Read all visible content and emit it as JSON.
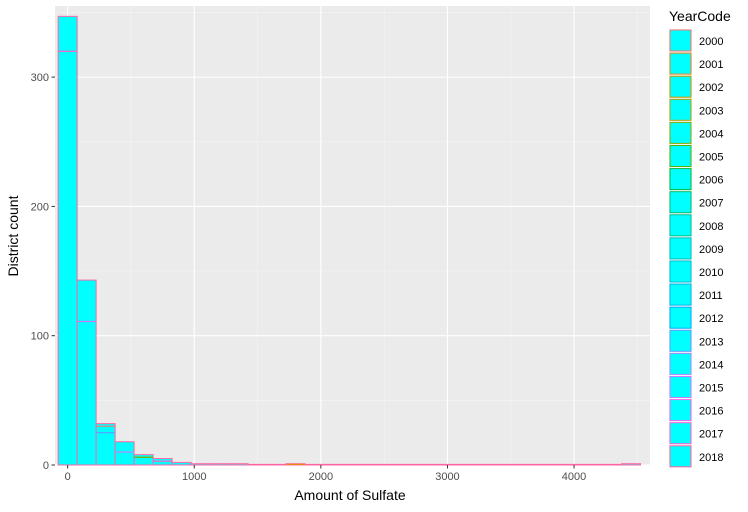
{
  "chart_data": {
    "type": "bar",
    "subtype": "stacked-histogram",
    "title": "",
    "xlabel": "Amount of Sulfate",
    "ylabel": "District count",
    "xlim": [
      -100,
      4600
    ],
    "ylim": [
      0,
      355
    ],
    "x_ticks": [
      0,
      1000,
      2000,
      3000,
      4000
    ],
    "y_ticks": [
      0,
      100,
      200,
      300
    ],
    "grid": true,
    "fill_color": "#00FFFF",
    "legend": {
      "title": "YearCode",
      "placement": "right"
    },
    "bins": [
      {
        "x0": -75,
        "x1": 75,
        "total": 347
      },
      {
        "x0": 75,
        "x1": 225,
        "total": 143
      },
      {
        "x0": 225,
        "x1": 375,
        "total": 32
      },
      {
        "x0": 375,
        "x1": 525,
        "total": 18
      },
      {
        "x0": 525,
        "x1": 675,
        "total": 8
      },
      {
        "x0": 675,
        "x1": 825,
        "total": 5
      },
      {
        "x0": 825,
        "x1": 975,
        "total": 2
      },
      {
        "x0": 975,
        "x1": 1125,
        "total": 1
      },
      {
        "x0": 1125,
        "x1": 1275,
        "total": 1
      },
      {
        "x0": 1275,
        "x1": 1425,
        "total": 1
      },
      {
        "x0": 1425,
        "x1": 1575,
        "total": 0
      },
      {
        "x0": 1575,
        "x1": 1725,
        "total": 0
      },
      {
        "x0": 1725,
        "x1": 1875,
        "total": 1
      },
      {
        "x0": 1875,
        "x1": 2025,
        "total": 0
      },
      {
        "x0": 2025,
        "x1": 4375,
        "total": 0
      },
      {
        "x0": 4375,
        "x1": 4525,
        "total": 1
      }
    ],
    "segment_lines": [
      {
        "x0": -75,
        "x1": 75,
        "y": 320,
        "color": "#FF61C3"
      },
      {
        "x0": 75,
        "x1": 225,
        "y": 111,
        "color": "#DB72FB"
      },
      {
        "x0": 225,
        "x1": 375,
        "y": 30,
        "color": "#F8766D"
      },
      {
        "x0": 225,
        "x1": 375,
        "y": 25,
        "color": "#619CFF"
      },
      {
        "x0": 375,
        "x1": 525,
        "y": 10,
        "color": "#C77CFF"
      },
      {
        "x0": 525,
        "x1": 675,
        "y": 6,
        "color": "#7CAE00"
      },
      {
        "x0": 675,
        "x1": 825,
        "y": 3,
        "color": "#FF61C3"
      },
      {
        "x0": 1725,
        "x1": 1875,
        "y": 0.5,
        "color": "#E68613"
      }
    ],
    "series": [
      {
        "name": "2000",
        "color": "#F8766D"
      },
      {
        "name": "2001",
        "color": "#E7861B"
      },
      {
        "name": "2002",
        "color": "#CF9400"
      },
      {
        "name": "2003",
        "color": "#B1A000"
      },
      {
        "name": "2004",
        "color": "#8AAB00"
      },
      {
        "name": "2005",
        "color": "#53B400"
      },
      {
        "name": "2006",
        "color": "#00BA38"
      },
      {
        "name": "2007",
        "color": "#00BE6C"
      },
      {
        "name": "2008",
        "color": "#00C094"
      },
      {
        "name": "2009",
        "color": "#00C0B8"
      },
      {
        "name": "2010",
        "color": "#00BDD4"
      },
      {
        "name": "2011",
        "color": "#00B6EB"
      },
      {
        "name": "2012",
        "color": "#00ABFD"
      },
      {
        "name": "2013",
        "color": "#619CFF"
      },
      {
        "name": "2014",
        "color": "#A58AFF"
      },
      {
        "name": "2015",
        "color": "#D078FF"
      },
      {
        "name": "2016",
        "color": "#EE67ED"
      },
      {
        "name": "2017",
        "color": "#FD61D1"
      },
      {
        "name": "2018",
        "color": "#FF67A4"
      }
    ]
  }
}
